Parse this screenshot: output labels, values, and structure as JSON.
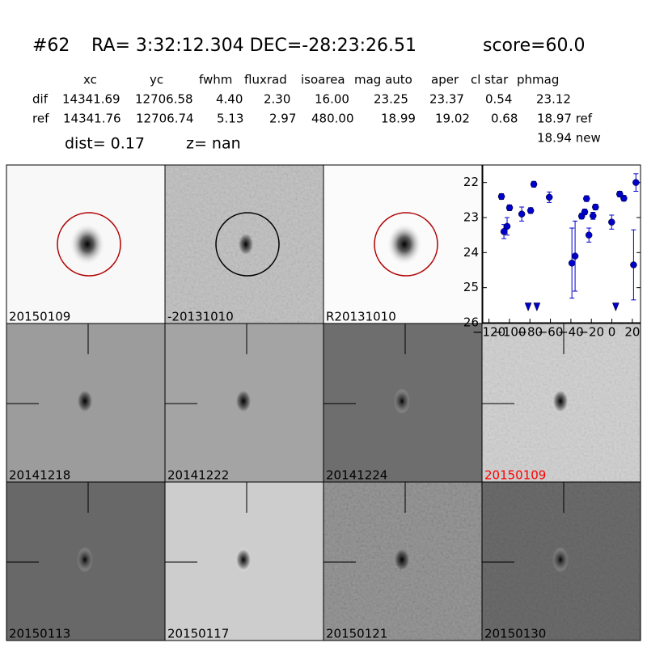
{
  "header": {
    "id": "#62",
    "coords": "RA= 3:32:12.304 DEC=-28:23:26.51",
    "score": "score=60.0"
  },
  "table": {
    "columns": [
      "xc",
      "yc",
      "fwhm",
      "fluxrad",
      "isoarea",
      "mag auto",
      "aper",
      "cl star",
      "phmag"
    ],
    "rows": [
      [
        "dif",
        "14341.69",
        "12706.58",
        "4.40",
        "2.30",
        "16.00",
        "23.25",
        "23.37",
        "0.54",
        "23.12"
      ],
      [
        "ref",
        "14341.76",
        "12706.74",
        "5.13",
        "2.97",
        "480.00",
        "18.99",
        "19.02",
        "0.68",
        "18.97 ref"
      ]
    ],
    "extra": "18.94 new"
  },
  "dist": "dist=  0.17",
  "z": "z=   nan",
  "panels": [
    {
      "label": "20150109"
    },
    {
      "label": "-20131010"
    },
    {
      "label": "R20131010"
    },
    {
      "label": "20141218"
    },
    {
      "label": "20141222"
    },
    {
      "label": "20141224"
    },
    {
      "label": "20150109",
      "color": "#ff0000"
    },
    {
      "label": "20150113"
    },
    {
      "label": "20150117"
    },
    {
      "label": "20150121"
    },
    {
      "label": "20150130"
    }
  ],
  "chart_data": {
    "type": "scatter",
    "xlim": [
      -126,
      28
    ],
    "ylim": [
      26,
      21.5
    ],
    "xticks": [
      {
        "value": -120,
        "label": "−120"
      },
      {
        "value": -100,
        "label": "−100"
      },
      {
        "value": -80,
        "label": "−80"
      },
      {
        "value": -60,
        "label": "−60"
      },
      {
        "value": -40,
        "label": "−40"
      },
      {
        "value": -20,
        "label": "−20"
      },
      0,
      20
    ],
    "yticks": [
      22,
      23,
      24,
      25,
      26
    ],
    "series": [
      {
        "color": "#0000cc",
        "marker": "circle",
        "x": [
          -107.8,
          -105.4,
          -102.3,
          -99.9,
          -88,
          -79.3,
          -76.2,
          -61.1,
          -39,
          -35.9,
          -29.5,
          -26.5,
          -24.7,
          -22.4,
          -18.4,
          -16,
          -0.2,
          7.7,
          11.7,
          21.2,
          23.5
        ],
        "values": [
          22.4,
          23.4,
          23.25,
          22.72,
          22.9,
          22.8,
          22.05,
          22.42,
          24.3,
          24.1,
          22.96,
          22.84,
          22.46,
          23.5,
          22.95,
          22.7,
          23.13,
          22.33,
          22.45,
          24.35,
          22.0
        ],
        "errors": [
          0.08,
          0.2,
          0.25,
          0.08,
          0.2,
          0.08,
          0.08,
          0.15,
          1.0,
          1.0,
          0.08,
          0.08,
          0.08,
          0.2,
          0.1,
          0.08,
          0.2,
          0.08,
          0.08,
          1.0,
          0.25
        ]
      },
      {
        "color": "#0000cc",
        "marker": "triangle-down",
        "x": [
          -81.7,
          -73.2,
          3.8
        ],
        "values": [
          25.55,
          25.55,
          25.55
        ]
      }
    ]
  }
}
